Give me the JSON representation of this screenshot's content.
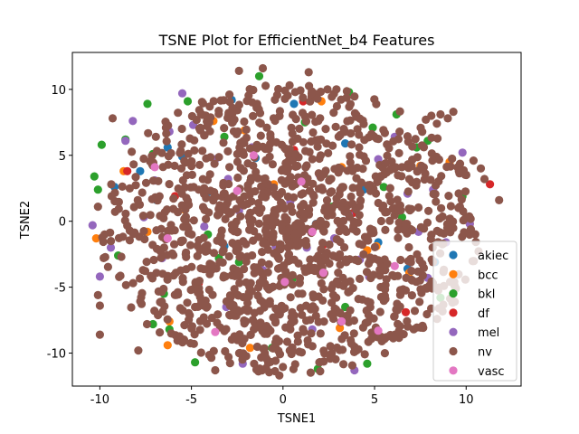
{
  "chart_data": {
    "type": "scatter",
    "title": "TSNE Plot for EfficientNet_b4 Features",
    "xlabel": "TSNE1",
    "ylabel": "TSNE2",
    "xlim": [
      -11.5,
      13
    ],
    "ylim": [
      -12.5,
      12.8
    ],
    "xticks": [
      -10,
      -5,
      0,
      5,
      10
    ],
    "yticks": [
      -10,
      -5,
      0,
      5,
      10
    ],
    "grid": false,
    "legend_position": "lower-right",
    "series": [
      {
        "name": "akiec",
        "color": "#1f77b4",
        "points": [
          [
            -9.2,
            2.6
          ],
          [
            -7.8,
            3.8
          ],
          [
            -6.9,
            1.6
          ],
          [
            -5.5,
            4.9
          ],
          [
            -4.1,
            2.2
          ],
          [
            -2.8,
            9.2
          ],
          [
            -1.5,
            4.8
          ],
          [
            0.6,
            8.9
          ],
          [
            3.4,
            5.9
          ],
          [
            5.2,
            -1.6
          ],
          [
            6.8,
            -3.6
          ],
          [
            8.3,
            -3.1
          ],
          [
            -3.2,
            -1.9
          ],
          [
            1.8,
            -0.2
          ],
          [
            4.4,
            2.4
          ],
          [
            -6.3,
            5.6
          ]
        ]
      },
      {
        "name": "bcc",
        "color": "#ff7f0e",
        "points": [
          [
            -10.2,
            -1.3
          ],
          [
            -8.7,
            3.8
          ],
          [
            -7.4,
            -0.8
          ],
          [
            -6.2,
            -7.6
          ],
          [
            -6.3,
            -9.4
          ],
          [
            -5.4,
            0.9
          ],
          [
            -3.8,
            7.6
          ],
          [
            -2.1,
            6.9
          ],
          [
            -1.4,
            8.6
          ],
          [
            2.1,
            9.1
          ],
          [
            3.2,
            4.1
          ],
          [
            5.1,
            -1.9
          ],
          [
            6.9,
            -3.9
          ],
          [
            7.5,
            4.2
          ],
          [
            9.1,
            4.5
          ],
          [
            10.2,
            -0.2
          ],
          [
            3.1,
            -8.1
          ],
          [
            -1.8,
            -9.6
          ],
          [
            4.6,
            -2.2
          ],
          [
            -0.5,
            2.8
          ]
        ]
      },
      {
        "name": "bkl",
        "color": "#2ca02c",
        "points": [
          [
            -10.3,
            3.4
          ],
          [
            -9.9,
            5.8
          ],
          [
            -10.1,
            2.4
          ],
          [
            -9.0,
            -2.6
          ],
          [
            -8.6,
            6.2
          ],
          [
            -7.4,
            8.9
          ],
          [
            -7.1,
            5.1
          ],
          [
            -6.5,
            -5.5
          ],
          [
            -5.2,
            9.1
          ],
          [
            -4.8,
            -10.7
          ],
          [
            -4.1,
            -1.0
          ],
          [
            -3.2,
            6.4
          ],
          [
            -2.4,
            -3.1
          ],
          [
            -0.6,
            -9.6
          ],
          [
            0.3,
            -0.8
          ],
          [
            1.2,
            7.5
          ],
          [
            1.9,
            -11.2
          ],
          [
            2.6,
            3.2
          ],
          [
            3.4,
            -6.5
          ],
          [
            4.6,
            -10.8
          ],
          [
            4.9,
            7.1
          ],
          [
            5.5,
            2.6
          ],
          [
            6.2,
            8.1
          ],
          [
            6.5,
            0.3
          ],
          [
            7.3,
            5.6
          ],
          [
            7.9,
            6.1
          ],
          [
            8.6,
            -5.8
          ],
          [
            9.8,
            1.9
          ],
          [
            -1.3,
            11.0
          ],
          [
            3.6,
            9.8
          ],
          [
            -7.1,
            -7.8
          ],
          [
            -6.2,
            -8.2
          ],
          [
            0.5,
            -4.4
          ],
          [
            -3.5,
            -2.8
          ],
          [
            5.3,
            4.3
          ],
          [
            2.7,
            1.1
          ]
        ]
      },
      {
        "name": "df",
        "color": "#d62728",
        "points": [
          [
            -8.5,
            3.8
          ],
          [
            -5.9,
            1.9
          ],
          [
            0.6,
            5.4
          ],
          [
            1.1,
            9.1
          ],
          [
            2.2,
            -1.8
          ],
          [
            6.7,
            -6.9
          ],
          [
            11.3,
            2.8
          ],
          [
            -4.6,
            -4.7
          ],
          [
            3.8,
            0.6
          ]
        ]
      },
      {
        "name": "mel",
        "color": "#9467bd",
        "points": [
          [
            -10.4,
            -0.3
          ],
          [
            -10.0,
            -4.2
          ],
          [
            -9.4,
            -2.0
          ],
          [
            -8.6,
            6.1
          ],
          [
            -8.2,
            7.6
          ],
          [
            -7.6,
            0.3
          ],
          [
            -7.0,
            3.1
          ],
          [
            -6.2,
            6.8
          ],
          [
            -5.5,
            9.7
          ],
          [
            -4.9,
            7.3
          ],
          [
            -4.3,
            -0.4
          ],
          [
            -3.7,
            4.7
          ],
          [
            -3.0,
            3.2
          ],
          [
            -2.4,
            0.8
          ],
          [
            -1.7,
            5.6
          ],
          [
            -1.1,
            -3.7
          ],
          [
            -0.4,
            -1.9
          ],
          [
            0.4,
            1.5
          ],
          [
            1.3,
            -2.0
          ],
          [
            2.0,
            3.5
          ],
          [
            2.8,
            -1.3
          ],
          [
            3.6,
            0.5
          ],
          [
            4.2,
            -2.9
          ],
          [
            4.7,
            -4.2
          ],
          [
            5.2,
            4.7
          ],
          [
            6.1,
            6.4
          ],
          [
            6.8,
            2.1
          ],
          [
            7.4,
            -0.8
          ],
          [
            8.2,
            2.4
          ],
          [
            8.9,
            -1.6
          ],
          [
            9.8,
            5.2
          ],
          [
            10.2,
            -0.2
          ],
          [
            3.9,
            -11.3
          ],
          [
            -2.2,
            -10.8
          ],
          [
            -6.6,
            -2.8
          ],
          [
            -3.1,
            -6.5
          ],
          [
            1.6,
            -8.2
          ],
          [
            7.9,
            -4.3
          ]
        ]
      },
      {
        "name": "vasc",
        "color": "#e377c2",
        "points": [
          [
            -7.0,
            4.1
          ],
          [
            -6.3,
            -1.3
          ],
          [
            -3.7,
            -8.4
          ],
          [
            -1.6,
            5.0
          ],
          [
            0.1,
            -4.6
          ],
          [
            1.6,
            -0.8
          ],
          [
            2.2,
            -3.9
          ],
          [
            3.2,
            -7.6
          ],
          [
            5.2,
            -8.3
          ],
          [
            6.1,
            -3.4
          ],
          [
            -2.5,
            2.3
          ],
          [
            1.0,
            3.0
          ]
        ]
      }
    ],
    "nv_generator": {
      "name": "nv",
      "color": "#8c564b",
      "center": [
        0.4,
        -0.6
      ],
      "radius_x": 10.4,
      "radius_y": 11.0,
      "count": 1350,
      "seed": 7,
      "extra_points": [
        [
          7.8,
          7.7
        ],
        [
          8.1,
          8.0
        ],
        [
          8.6,
          8.1
        ],
        [
          9.0,
          7.8
        ],
        [
          9.3,
          8.3
        ],
        [
          8.4,
          7.4
        ],
        [
          9.6,
          3.8
        ],
        [
          10.4,
          4.6
        ],
        [
          11.0,
          3.2
        ],
        [
          11.8,
          1.6
        ],
        [
          10.8,
          4.0
        ],
        [
          -9.3,
          7.8
        ],
        [
          -10.1,
          -5.6
        ],
        [
          -10.0,
          -6.4
        ],
        [
          -10.0,
          -8.6
        ],
        [
          -7.9,
          -9.8
        ],
        [
          -3.7,
          -11.3
        ],
        [
          -0.2,
          -11.7
        ],
        [
          -2.4,
          11.4
        ],
        [
          -1.1,
          11.6
        ],
        [
          1.4,
          11.3
        ],
        [
          -10.1,
          1.1
        ]
      ]
    },
    "legend": [
      "akiec",
      "bcc",
      "bkl",
      "df",
      "mel",
      "nv",
      "vasc"
    ]
  }
}
